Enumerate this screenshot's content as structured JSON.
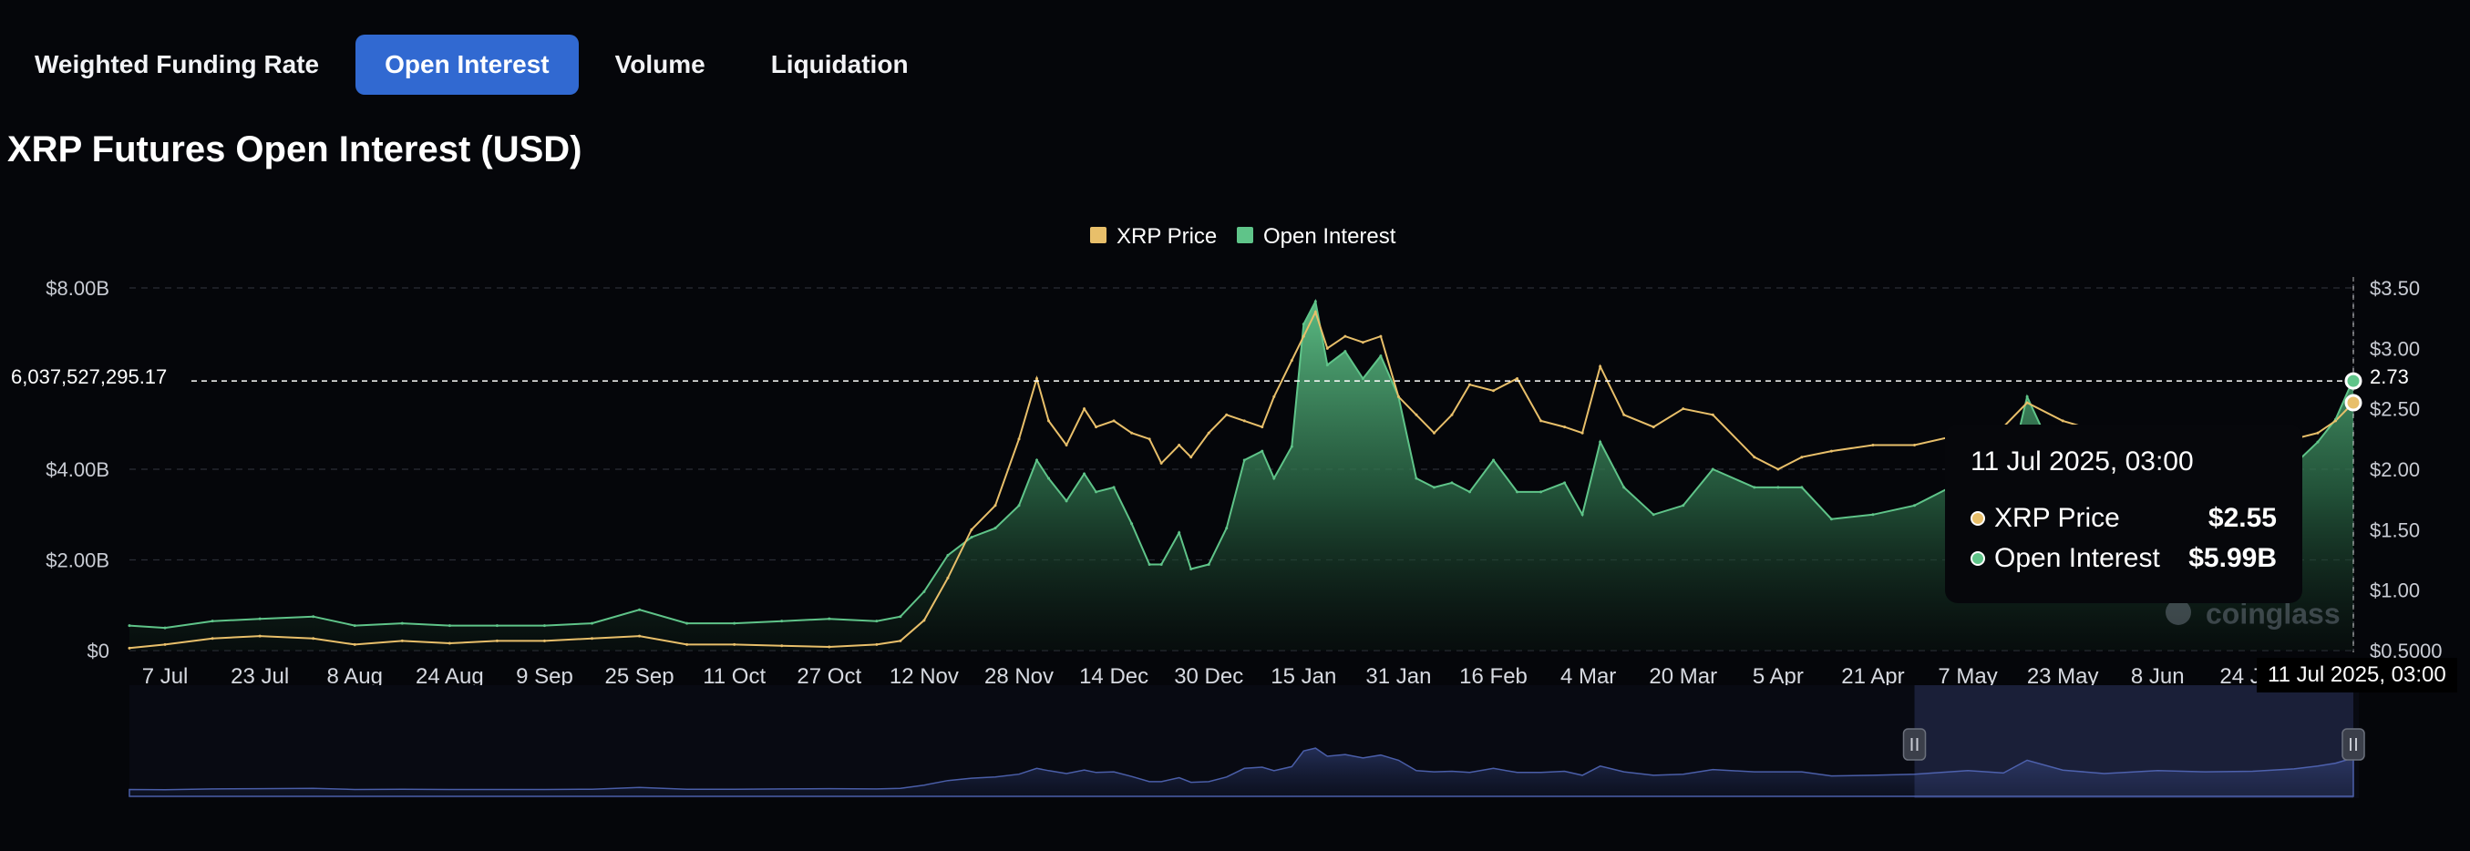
{
  "tabs": [
    {
      "label": "Weighted Funding Rate",
      "active": false
    },
    {
      "label": "Open Interest",
      "active": true
    },
    {
      "label": "Volume",
      "active": false
    },
    {
      "label": "Liquidation",
      "active": false
    }
  ],
  "page_title": "XRP Futures Open Interest (USD)",
  "watermark": "coinglass",
  "colors": {
    "price": "#e8bf6a",
    "oi": "#5fc489",
    "accent": "#3169d1",
    "navigator": "#4a5ea8"
  },
  "hover": {
    "y_left_value": "6,037,527,295.17",
    "y_right_value": "2.73",
    "x_label": "11 Jul 2025, 03:00"
  },
  "tooltip": {
    "title": "11 Jul 2025, 03:00",
    "rows": [
      {
        "label": "XRP Price",
        "value": "$2.55",
        "color": "#e8bf6a"
      },
      {
        "label": "Open Interest",
        "value": "$5.99B",
        "color": "#5fc489"
      }
    ]
  },
  "chart_data": {
    "type": "area",
    "title": "XRP Futures Open Interest (USD)",
    "legend_position": "top-center",
    "grid": true,
    "x_ticks": [
      "7 Jul",
      "23 Jul",
      "8 Aug",
      "24 Aug",
      "9 Sep",
      "25 Sep",
      "11 Oct",
      "27 Oct",
      "12 Nov",
      "28 Nov",
      "14 Dec",
      "30 Dec",
      "15 Jan",
      "31 Jan",
      "16 Feb",
      "4 Mar",
      "20 Mar",
      "5 Apr",
      "21 Apr",
      "7 May",
      "23 May",
      "8 Jun",
      "24 Jun"
    ],
    "y_left_ticks": [
      "$0",
      "$2.00B",
      "$4.00B",
      "$8.00B"
    ],
    "y_right_ticks": [
      "$0.5000",
      "$1.00",
      "$1.50",
      "$2.00",
      "$2.50",
      "$3.00",
      "$3.50"
    ],
    "ylim_left": [
      0,
      8
    ],
    "ylim_right": [
      0.5,
      3.5
    ],
    "x_dates": [
      "2024-07-01",
      "2024-07-07",
      "2024-07-15",
      "2024-07-23",
      "2024-08-01",
      "2024-08-08",
      "2024-08-16",
      "2024-08-24",
      "2024-09-01",
      "2024-09-09",
      "2024-09-17",
      "2024-09-25",
      "2024-10-03",
      "2024-10-11",
      "2024-10-19",
      "2024-10-27",
      "2024-11-04",
      "2024-11-08",
      "2024-11-12",
      "2024-11-16",
      "2024-11-20",
      "2024-11-24",
      "2024-11-28",
      "2024-12-01",
      "2024-12-03",
      "2024-12-06",
      "2024-12-09",
      "2024-12-11",
      "2024-12-14",
      "2024-12-17",
      "2024-12-20",
      "2024-12-22",
      "2024-12-25",
      "2024-12-27",
      "2024-12-30",
      "2025-01-02",
      "2025-01-05",
      "2025-01-08",
      "2025-01-10",
      "2025-01-13",
      "2025-01-15",
      "2025-01-17",
      "2025-01-19",
      "2025-01-22",
      "2025-01-25",
      "2025-01-28",
      "2025-01-31",
      "2025-02-03",
      "2025-02-06",
      "2025-02-09",
      "2025-02-12",
      "2025-02-16",
      "2025-02-20",
      "2025-02-24",
      "2025-02-28",
      "2025-03-03",
      "2025-03-06",
      "2025-03-10",
      "2025-03-15",
      "2025-03-20",
      "2025-03-25",
      "2025-04-01",
      "2025-04-05",
      "2025-04-09",
      "2025-04-14",
      "2025-04-21",
      "2025-04-28",
      "2025-05-07",
      "2025-05-13",
      "2025-05-17",
      "2025-05-23",
      "2025-05-30",
      "2025-06-08",
      "2025-06-16",
      "2025-06-24",
      "2025-07-01",
      "2025-07-05",
      "2025-07-08",
      "2025-07-11"
    ],
    "series": [
      {
        "name": "Open Interest",
        "axis": "left",
        "unit": "USD billions",
        "values": [
          0.55,
          0.5,
          0.65,
          0.7,
          0.75,
          0.55,
          0.6,
          0.55,
          0.55,
          0.55,
          0.6,
          0.9,
          0.6,
          0.6,
          0.65,
          0.7,
          0.65,
          0.75,
          1.3,
          2.1,
          2.5,
          2.7,
          3.2,
          4.2,
          3.8,
          3.3,
          3.9,
          3.5,
          3.6,
          2.8,
          1.9,
          1.9,
          2.6,
          1.8,
          1.9,
          2.7,
          4.2,
          4.4,
          3.8,
          4.5,
          7.2,
          7.7,
          6.3,
          6.6,
          6.0,
          6.5,
          5.6,
          3.8,
          3.6,
          3.7,
          3.5,
          4.2,
          3.5,
          3.5,
          3.7,
          3.0,
          4.6,
          3.6,
          3.0,
          3.2,
          4.0,
          3.6,
          3.6,
          3.6,
          2.9,
          3.0,
          3.2,
          3.8,
          3.4,
          5.6,
          3.9,
          3.3,
          3.8,
          3.6,
          3.7,
          4.1,
          4.6,
          5.1,
          5.99
        ]
      },
      {
        "name": "XRP Price",
        "axis": "right",
        "unit": "USD",
        "values": [
          0.52,
          0.55,
          0.6,
          0.62,
          0.6,
          0.55,
          0.58,
          0.56,
          0.58,
          0.58,
          0.6,
          0.62,
          0.55,
          0.55,
          0.54,
          0.53,
          0.55,
          0.58,
          0.75,
          1.1,
          1.5,
          1.7,
          2.25,
          2.75,
          2.4,
          2.2,
          2.5,
          2.35,
          2.4,
          2.3,
          2.25,
          2.05,
          2.2,
          2.1,
          2.3,
          2.45,
          2.4,
          2.35,
          2.6,
          2.9,
          3.1,
          3.3,
          3.0,
          3.1,
          3.05,
          3.1,
          2.6,
          2.45,
          2.3,
          2.45,
          2.7,
          2.65,
          2.75,
          2.4,
          2.35,
          2.3,
          2.85,
          2.45,
          2.35,
          2.5,
          2.45,
          2.1,
          2.0,
          2.1,
          2.15,
          2.2,
          2.2,
          2.3,
          2.35,
          2.55,
          2.4,
          2.3,
          2.2,
          2.15,
          2.2,
          2.25,
          2.3,
          2.4,
          2.55
        ]
      }
    ],
    "navigator": {
      "selected_from": "2025-04-28",
      "selected_to": "2025-07-11"
    }
  }
}
